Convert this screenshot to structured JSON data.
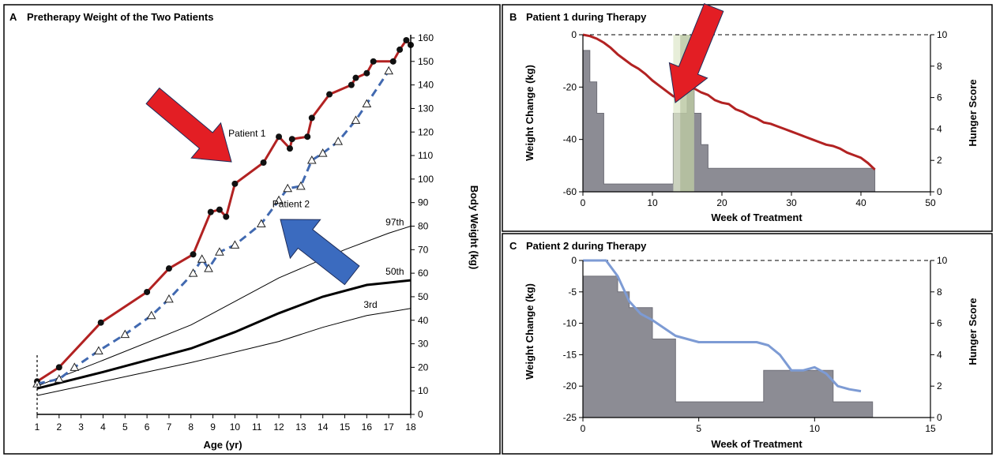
{
  "colors": {
    "patient1": "#b22222",
    "patient2": "#4169b0",
    "hunger_bars": "#8c8c94",
    "highlight": "#dfe8cc",
    "highlight_dark": "#8a9a6a",
    "arrow_red": "#e31e24",
    "arrow_blue": "#3b6bbf",
    "p2_line": "#7d9bd4"
  },
  "chart_data": [
    {
      "panel": "A",
      "type": "line",
      "title": "Pretherapy Weight of the Two Patients",
      "xlabel": "Age (yr)",
      "ylabel": "Body Weight (kg)",
      "xlim": [
        1,
        18
      ],
      "ylim": [
        0,
        160
      ],
      "xticks": [
        "1",
        "2",
        "3",
        "4",
        "5",
        "6",
        "7",
        "8",
        "9",
        "10",
        "11",
        "12",
        "13",
        "14",
        "15",
        "16",
        "17",
        "18"
      ],
      "yticks": [
        "0",
        "10",
        "20",
        "30",
        "40",
        "50",
        "60",
        "70",
        "80",
        "90",
        "100",
        "110",
        "120",
        "130",
        "140",
        "150",
        "160"
      ],
      "series": [
        {
          "name": "Patient 1",
          "label_text": "Patient 1",
          "marker": "filled-circle",
          "style": "solid",
          "x": [
            1,
            2,
            3.9,
            6,
            7,
            8.1,
            8.9,
            9.3,
            9.6,
            10,
            11.3,
            12,
            12.5,
            12.6,
            13.3,
            13.5,
            14.3,
            15.3,
            15.5,
            16,
            16.3,
            17.2,
            17.5,
            17.8,
            18
          ],
          "y": [
            14,
            20,
            39,
            52,
            62,
            68,
            86,
            87,
            84,
            98,
            107,
            118,
            113,
            117,
            118,
            126,
            136,
            140,
            143,
            145,
            150,
            150,
            155,
            159,
            157
          ]
        },
        {
          "name": "Patient 2",
          "label_text": "Patient 2",
          "marker": "open-triangle",
          "style": "dashed",
          "x": [
            1,
            2,
            2.7,
            3.8,
            5,
            6.2,
            7,
            8.1,
            8.5,
            8.8,
            9.3,
            10,
            11.2,
            12,
            12.4,
            13,
            13.5,
            14,
            14.7,
            15.5,
            16,
            17
          ],
          "y": [
            13,
            15,
            20,
            27,
            34,
            42,
            49,
            60,
            66,
            62,
            69,
            72,
            81,
            91,
            96,
            97,
            108,
            111,
            116,
            125,
            132,
            146
          ]
        }
      ],
      "reference_curves": [
        {
          "label": "97th",
          "style": "thin",
          "x": [
            1,
            4,
            8,
            12,
            15,
            17,
            18
          ],
          "y": [
            12,
            23,
            38,
            58,
            70,
            77,
            80
          ]
        },
        {
          "label": "50th",
          "style": "thick",
          "x": [
            1,
            4,
            8,
            10,
            12,
            14,
            16,
            17,
            18
          ],
          "y": [
            11,
            18,
            28,
            35,
            43,
            50,
            55,
            56,
            57
          ]
        },
        {
          "label": "3rd",
          "style": "thin",
          "x": [
            1,
            4,
            8,
            12,
            14,
            16,
            18
          ],
          "y": [
            8,
            14,
            22,
            31,
            37,
            42,
            45
          ]
        }
      ]
    },
    {
      "panel": "B",
      "type": "line",
      "title": "Patient 1 during Therapy",
      "xlabel": "Week of Treatment",
      "ylabel": "Weight Change (kg)",
      "y2label": "Hunger Score",
      "xlim": [
        0,
        50
      ],
      "ylim": [
        -60,
        0
      ],
      "y2lim": [
        0,
        10
      ],
      "xticks": [
        "0",
        "10",
        "20",
        "30",
        "40",
        "50"
      ],
      "yticks": [
        "0",
        "-20",
        "-40",
        "-60"
      ],
      "y2ticks": [
        "0",
        "2",
        "4",
        "6",
        "8",
        "10"
      ],
      "highlight_weeks": [
        13,
        16
      ],
      "weight_change": {
        "x": [
          0,
          1,
          2,
          3,
          4,
          5,
          6,
          7,
          8,
          9,
          10,
          11,
          12,
          13,
          14,
          15,
          16,
          17,
          18,
          19,
          20,
          21,
          22,
          23,
          24,
          25,
          26,
          27,
          28,
          29,
          30,
          31,
          32,
          33,
          34,
          35,
          36,
          37,
          38,
          39,
          40,
          41,
          42
        ],
        "y": [
          0,
          -0.5,
          -1.5,
          -3,
          -5,
          -7.5,
          -9.5,
          -11.5,
          -13,
          -15,
          -17.5,
          -19.5,
          -21.5,
          -23.5,
          -24,
          -21,
          -20.5,
          -22,
          -23,
          -25,
          -26,
          -26.5,
          -28.5,
          -29.5,
          -31,
          -32,
          -33.5,
          -34,
          -35,
          -36,
          -37,
          -38,
          -39,
          -40,
          -41,
          -42,
          -42.5,
          -43.5,
          -45,
          -46,
          -47,
          -49,
          -51.5
        ]
      },
      "hunger_score": {
        "x": [
          0,
          1,
          2,
          3,
          4,
          13,
          15,
          16,
          17,
          18,
          19,
          42
        ],
        "y": [
          9,
          7,
          5,
          0.5,
          0.5,
          5,
          7,
          5,
          3,
          1.5,
          1.5,
          1.5
        ]
      }
    },
    {
      "panel": "C",
      "type": "line",
      "title": "Patient 2 during Therapy",
      "xlabel": "Week of Treatment",
      "ylabel": "Weight Change (kg)",
      "y2label": "Hunger Score",
      "xlim": [
        0,
        15
      ],
      "ylim": [
        -25,
        0
      ],
      "y2lim": [
        0,
        10
      ],
      "xticks": [
        "0",
        "5",
        "10",
        "15"
      ],
      "yticks": [
        "0",
        "-5",
        "-10",
        "-15",
        "-20",
        "-25"
      ],
      "y2ticks": [
        "0",
        "2",
        "4",
        "6",
        "8",
        "10"
      ],
      "weight_change": {
        "x": [
          0,
          1,
          1.5,
          2,
          2.5,
          3,
          4,
          5,
          6,
          7,
          7.5,
          8,
          8.5,
          9,
          9.5,
          10,
          10.5,
          11,
          11.5,
          12
        ],
        "y": [
          0,
          0,
          -2.5,
          -6.5,
          -8.5,
          -9.5,
          -12,
          -13,
          -13,
          -13,
          -13,
          -13.5,
          -15,
          -17.5,
          -17.5,
          -17,
          -18,
          -20,
          -20.5,
          -20.8
        ]
      },
      "hunger_score": {
        "x": [
          0,
          1.5,
          2,
          3,
          4,
          7.8,
          10.8,
          12.5
        ],
        "y": [
          9,
          8,
          7,
          5,
          1,
          3,
          1,
          1
        ]
      }
    }
  ]
}
